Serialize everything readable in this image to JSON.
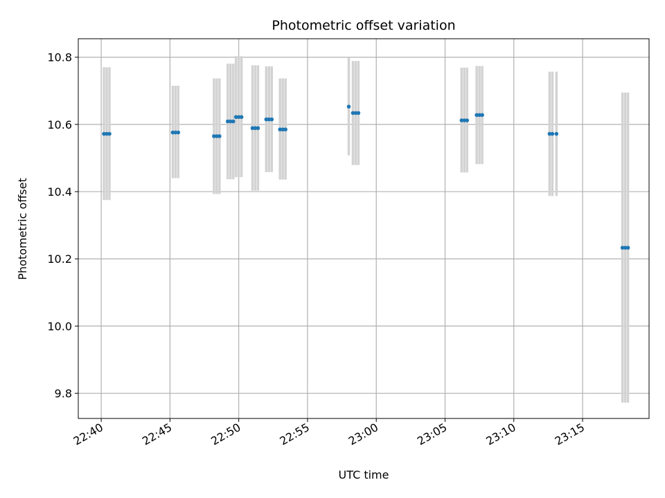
{
  "chart_data": {
    "type": "scatter",
    "title": "Photometric offset variation",
    "xlabel": "UTC time",
    "ylabel": "Photometric offset",
    "xlim": [
      "22:38:20",
      "23:19:50"
    ],
    "ylim": [
      9.725,
      10.855
    ],
    "xticks": [
      "22:40",
      "22:45",
      "22:50",
      "22:55",
      "23:00",
      "23:05",
      "23:10",
      "23:15"
    ],
    "yticks": [
      "9.8",
      "10.0",
      "10.2",
      "10.4",
      "10.6",
      "10.8"
    ],
    "grid": true,
    "colors": {
      "point": "#1f77b4",
      "errorbar": "#d3d3d3",
      "grid": "#b0b0b0"
    },
    "points": [
      {
        "x": "22:40:12",
        "y": 10.572,
        "err_low": 10.375,
        "err_high": 10.77
      },
      {
        "x": "22:40:24",
        "y": 10.572,
        "err_low": 10.375,
        "err_high": 10.77
      },
      {
        "x": "22:40:36",
        "y": 10.572,
        "err_low": 10.375,
        "err_high": 10.77
      },
      {
        "x": "22:45:12",
        "y": 10.576,
        "err_low": 10.44,
        "err_high": 10.715
      },
      {
        "x": "22:45:24",
        "y": 10.576,
        "err_low": 10.44,
        "err_high": 10.715
      },
      {
        "x": "22:45:36",
        "y": 10.576,
        "err_low": 10.44,
        "err_high": 10.715
      },
      {
        "x": "22:48:12",
        "y": 10.565,
        "err_low": 10.393,
        "err_high": 10.737
      },
      {
        "x": "22:48:24",
        "y": 10.565,
        "err_low": 10.393,
        "err_high": 10.737
      },
      {
        "x": "22:48:36",
        "y": 10.565,
        "err_low": 10.393,
        "err_high": 10.737
      },
      {
        "x": "22:49:12",
        "y": 10.609,
        "err_low": 10.437,
        "err_high": 10.781
      },
      {
        "x": "22:49:24",
        "y": 10.609,
        "err_low": 10.437,
        "err_high": 10.781
      },
      {
        "x": "22:49:36",
        "y": 10.609,
        "err_low": 10.437,
        "err_high": 10.781
      },
      {
        "x": "22:49:48",
        "y": 10.622,
        "err_low": 10.443,
        "err_high": 10.803
      },
      {
        "x": "22:50:00",
        "y": 10.622,
        "err_low": 10.443,
        "err_high": 10.803
      },
      {
        "x": "22:50:12",
        "y": 10.622,
        "err_low": 10.443,
        "err_high": 10.803
      },
      {
        "x": "22:51:00",
        "y": 10.589,
        "err_low": 10.403,
        "err_high": 10.776
      },
      {
        "x": "22:51:12",
        "y": 10.589,
        "err_low": 10.403,
        "err_high": 10.776
      },
      {
        "x": "22:51:24",
        "y": 10.589,
        "err_low": 10.403,
        "err_high": 10.776
      },
      {
        "x": "22:52:00",
        "y": 10.615,
        "err_low": 10.458,
        "err_high": 10.773
      },
      {
        "x": "22:52:12",
        "y": 10.615,
        "err_low": 10.458,
        "err_high": 10.773
      },
      {
        "x": "22:52:24",
        "y": 10.615,
        "err_low": 10.458,
        "err_high": 10.773
      },
      {
        "x": "22:53:00",
        "y": 10.585,
        "err_low": 10.436,
        "err_high": 10.737
      },
      {
        "x": "22:53:12",
        "y": 10.585,
        "err_low": 10.436,
        "err_high": 10.737
      },
      {
        "x": "22:53:24",
        "y": 10.585,
        "err_low": 10.436,
        "err_high": 10.737
      },
      {
        "x": "22:58:00",
        "y": 10.653,
        "err_low": 10.508,
        "err_high": 10.798
      },
      {
        "x": "22:58:18",
        "y": 10.634,
        "err_low": 10.479,
        "err_high": 10.789
      },
      {
        "x": "22:58:30",
        "y": 10.634,
        "err_low": 10.479,
        "err_high": 10.789
      },
      {
        "x": "22:58:42",
        "y": 10.634,
        "err_low": 10.479,
        "err_high": 10.789
      },
      {
        "x": "23:06:12",
        "y": 10.612,
        "err_low": 10.457,
        "err_high": 10.769
      },
      {
        "x": "23:06:24",
        "y": 10.612,
        "err_low": 10.457,
        "err_high": 10.769
      },
      {
        "x": "23:06:36",
        "y": 10.612,
        "err_low": 10.457,
        "err_high": 10.769
      },
      {
        "x": "23:07:18",
        "y": 10.628,
        "err_low": 10.482,
        "err_high": 10.774
      },
      {
        "x": "23:07:30",
        "y": 10.628,
        "err_low": 10.482,
        "err_high": 10.774
      },
      {
        "x": "23:07:42",
        "y": 10.628,
        "err_low": 10.482,
        "err_high": 10.774
      },
      {
        "x": "23:12:36",
        "y": 10.572,
        "err_low": 10.387,
        "err_high": 10.757
      },
      {
        "x": "23:12:48",
        "y": 10.572,
        "err_low": 10.387,
        "err_high": 10.757
      },
      {
        "x": "23:13:06",
        "y": 10.572,
        "err_low": 10.387,
        "err_high": 10.757
      },
      {
        "x": "23:17:54",
        "y": 10.233,
        "err_low": 9.772,
        "err_high": 10.695
      },
      {
        "x": "23:18:06",
        "y": 10.233,
        "err_low": 9.772,
        "err_high": 10.695
      },
      {
        "x": "23:18:18",
        "y": 10.233,
        "err_low": 9.772,
        "err_high": 10.695
      }
    ]
  }
}
